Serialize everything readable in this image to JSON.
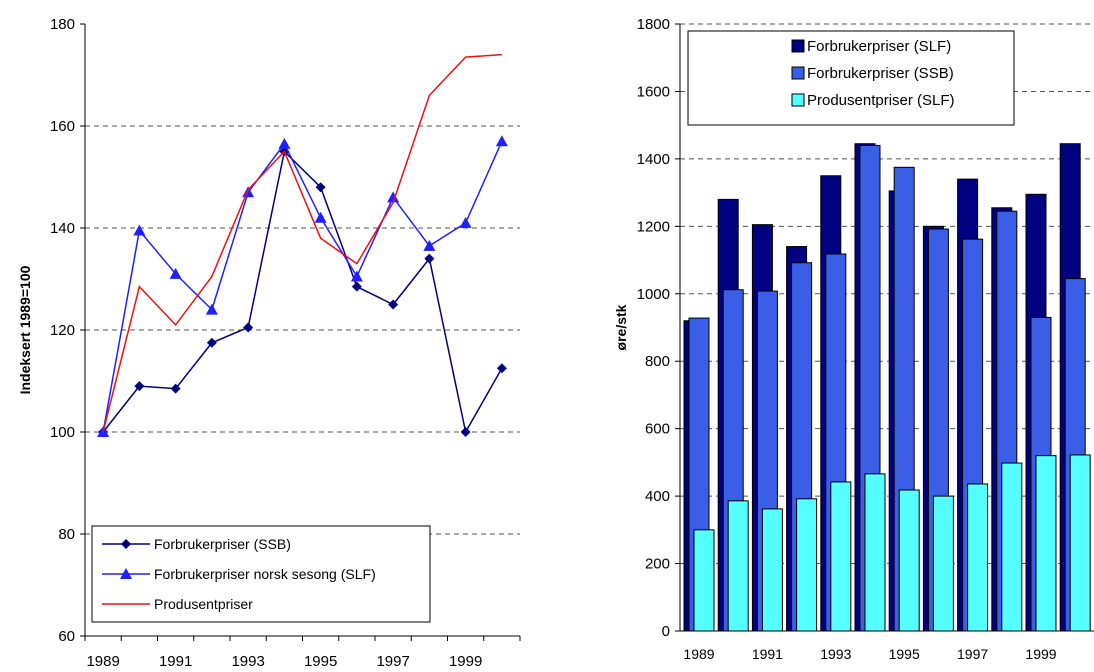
{
  "chart_data": [
    {
      "type": "line",
      "ylabel": "Indeksert 1989=100",
      "ylim": [
        60,
        180
      ],
      "yticks": [
        60,
        80,
        100,
        120,
        140,
        160,
        180
      ],
      "xticks": [
        "1989",
        "1991",
        "1993",
        "1995",
        "1997",
        "1999"
      ],
      "grid": "horizontal-dashed",
      "legend_position": "bottom-left",
      "series": [
        {
          "name": "Forbrukerpriser (SSB)",
          "color": "#000080",
          "marker": "diamond",
          "x": [
            1989,
            1990,
            1991,
            1992,
            1993,
            1994,
            1995,
            1996,
            1997,
            1998,
            1999,
            2000
          ],
          "values": [
            100,
            109,
            108.5,
            117.5,
            120.5,
            155,
            148,
            128.5,
            125,
            134,
            100,
            112.5
          ]
        },
        {
          "name": "Forbrukerpriser norsk sesong (SLF)",
          "color": "#2020ff",
          "marker": "triangle",
          "x": [
            1989,
            1990,
            1991,
            1992,
            1993,
            1994,
            1995,
            1996,
            1997,
            1998,
            1999,
            2000
          ],
          "values": [
            100,
            139.5,
            131,
            124,
            147,
            156.5,
            142,
            130.5,
            146,
            136.5,
            141,
            157
          ]
        },
        {
          "name": "Produsentpriser",
          "color": "#ee1111",
          "marker": "none",
          "x": [
            1989,
            1990,
            1991,
            1992,
            1993,
            1994,
            1995,
            1996,
            1997,
            1998,
            1999,
            2000
          ],
          "values": [
            100,
            128.5,
            121,
            130.5,
            147.5,
            155,
            138,
            133,
            145,
            166,
            173.5,
            174
          ]
        }
      ]
    },
    {
      "type": "bar",
      "ylabel": "øre/stk",
      "ylim": [
        0,
        1800
      ],
      "yticks": [
        0,
        200,
        400,
        600,
        800,
        1000,
        1200,
        1400,
        1600,
        1800
      ],
      "xticks": [
        "1989",
        "1991",
        "1993",
        "1995",
        "1997",
        "1999"
      ],
      "grid": "horizontal-dashed",
      "legend_position": "top",
      "categories": [
        "1989",
        "1990",
        "1991",
        "1992",
        "1993",
        "1994",
        "1995",
        "1996",
        "1997",
        "1998",
        "1999",
        "2000"
      ],
      "series": [
        {
          "name": "Forbrukerpriser (SLF)",
          "color": "#000080",
          "values": [
            920,
            1280,
            1205,
            1140,
            1350,
            1445,
            1305,
            1200,
            1340,
            1255,
            1295,
            1445
          ]
        },
        {
          "name": "Forbrukerpriser (SSB)",
          "color": "#3a5fe6",
          "values": [
            928,
            1012,
            1008,
            1092,
            1118,
            1440,
            1375,
            1192,
            1162,
            1245,
            930,
            1045
          ]
        },
        {
          "name": "Produsentpriser (SLF)",
          "color": "#55ffff",
          "values": [
            300,
            386,
            362,
            392,
            442,
            466,
            418,
            400,
            436,
            498,
            520,
            522
          ]
        }
      ]
    }
  ]
}
